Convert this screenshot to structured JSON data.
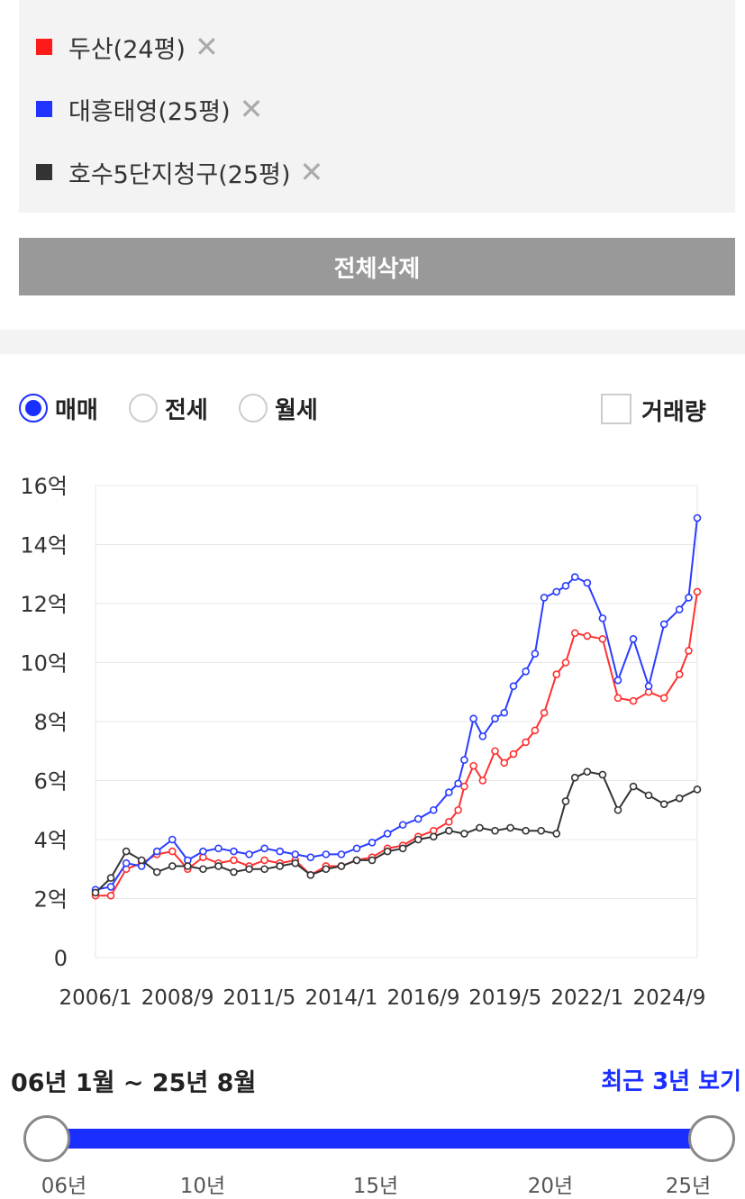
{
  "legend": {
    "items": [
      {
        "label": "두산(24평)",
        "color": "#ff1a1a"
      },
      {
        "label": "대흥태영(25평)",
        "color": "#2233ff"
      },
      {
        "label": "호수5단지청구(25평)",
        "color": "#333333"
      }
    ],
    "remove_glyph": "✕"
  },
  "clear_button": "전체삭제",
  "filters": {
    "options": [
      {
        "label": "매매",
        "selected": true
      },
      {
        "label": "전세",
        "selected": false
      },
      {
        "label": "월세",
        "selected": false
      }
    ],
    "volume_label": "거래량",
    "volume_checked": false
  },
  "chart_data": {
    "type": "line",
    "ylim": [
      0,
      16
    ],
    "yticks": [
      0,
      2,
      4,
      6,
      8,
      10,
      12,
      14,
      16
    ],
    "ytick_labels": [
      "0",
      "2억",
      "4억",
      "6억",
      "8억",
      "10억",
      "12억",
      "14억",
      "16억"
    ],
    "xlim": [
      2006.0,
      2025.58
    ],
    "xtick_values": [
      2006.0,
      2008.67,
      2011.33,
      2014.0,
      2016.67,
      2019.33,
      2022.0,
      2024.67
    ],
    "xtick_labels": [
      "2006/1",
      "2008/9",
      "2011/5",
      "2014/1",
      "2016/9",
      "2019/5",
      "2022/1",
      "2024/9"
    ],
    "grid": true,
    "series": [
      {
        "name": "두산(24평)",
        "color": "#ff3030",
        "x": [
          2006.0,
          2006.5,
          2007.0,
          2007.5,
          2008.0,
          2008.5,
          2009.0,
          2009.5,
          2010.0,
          2010.5,
          2011.0,
          2011.5,
          2012.0,
          2012.5,
          2013.0,
          2013.5,
          2014.0,
          2014.5,
          2015.0,
          2015.5,
          2016.0,
          2016.5,
          2017.0,
          2017.5,
          2017.8,
          2018.0,
          2018.3,
          2018.6,
          2019.0,
          2019.3,
          2019.6,
          2020.0,
          2020.3,
          2020.6,
          2021.0,
          2021.3,
          2021.6,
          2022.0,
          2022.5,
          2023.0,
          2023.5,
          2024.0,
          2024.5,
          2025.0,
          2025.3,
          2025.58
        ],
        "y": [
          2.1,
          2.1,
          3.0,
          3.2,
          3.5,
          3.6,
          3.0,
          3.4,
          3.2,
          3.3,
          3.1,
          3.3,
          3.2,
          3.3,
          2.8,
          3.1,
          3.1,
          3.3,
          3.4,
          3.7,
          3.8,
          4.1,
          4.3,
          4.6,
          5.0,
          5.8,
          6.5,
          6.0,
          7.0,
          6.6,
          6.9,
          7.3,
          7.7,
          8.3,
          9.6,
          10.0,
          11.0,
          10.9,
          10.8,
          8.8,
          8.7,
          9.0,
          8.8,
          9.6,
          10.4,
          12.4
        ]
      },
      {
        "name": "대흥태영(25평)",
        "color": "#2a3cff",
        "x": [
          2006.0,
          2006.5,
          2007.0,
          2007.5,
          2008.0,
          2008.5,
          2009.0,
          2009.5,
          2010.0,
          2010.5,
          2011.0,
          2011.5,
          2012.0,
          2012.5,
          2013.0,
          2013.5,
          2014.0,
          2014.5,
          2015.0,
          2015.5,
          2016.0,
          2016.5,
          2017.0,
          2017.5,
          2017.8,
          2018.0,
          2018.3,
          2018.6,
          2019.0,
          2019.3,
          2019.6,
          2020.0,
          2020.3,
          2020.6,
          2021.0,
          2021.3,
          2021.6,
          2022.0,
          2022.5,
          2023.0,
          2023.5,
          2024.0,
          2024.5,
          2025.0,
          2025.3,
          2025.58
        ],
        "y": [
          2.3,
          2.4,
          3.2,
          3.1,
          3.6,
          4.0,
          3.3,
          3.6,
          3.7,
          3.6,
          3.5,
          3.7,
          3.6,
          3.5,
          3.4,
          3.5,
          3.5,
          3.7,
          3.9,
          4.2,
          4.5,
          4.7,
          5.0,
          5.6,
          5.9,
          6.7,
          8.1,
          7.5,
          8.1,
          8.3,
          9.2,
          9.7,
          10.3,
          12.2,
          12.4,
          12.6,
          12.9,
          12.7,
          11.5,
          9.4,
          10.8,
          9.2,
          11.3,
          11.8,
          12.2,
          14.9
        ]
      },
      {
        "name": "호수5단지청구(25평)",
        "color": "#333333",
        "x": [
          2006.0,
          2006.5,
          2007.0,
          2007.5,
          2008.0,
          2008.5,
          2009.0,
          2009.5,
          2010.0,
          2010.5,
          2011.0,
          2011.5,
          2012.0,
          2012.5,
          2013.0,
          2013.5,
          2014.0,
          2014.5,
          2015.0,
          2015.5,
          2016.0,
          2016.5,
          2017.0,
          2017.5,
          2018.0,
          2018.5,
          2019.0,
          2019.5,
          2020.0,
          2020.5,
          2021.0,
          2021.3,
          2021.6,
          2022.0,
          2022.5,
          2023.0,
          2023.5,
          2024.0,
          2024.5,
          2025.0,
          2025.58
        ],
        "y": [
          2.2,
          2.7,
          3.6,
          3.3,
          2.9,
          3.1,
          3.1,
          3.0,
          3.1,
          2.9,
          3.0,
          3.0,
          3.1,
          3.2,
          2.8,
          3.0,
          3.1,
          3.3,
          3.3,
          3.6,
          3.7,
          4.0,
          4.1,
          4.3,
          4.2,
          4.4,
          4.3,
          4.4,
          4.3,
          4.3,
          4.2,
          5.3,
          6.1,
          6.3,
          6.2,
          5.0,
          5.8,
          5.5,
          5.2,
          5.4,
          5.7
        ]
      }
    ]
  },
  "range": {
    "text": "06년 1월 ~ 25년 8월",
    "recent_link": "최근 3년 보기",
    "start": 0,
    "end": 1,
    "ticks": [
      "06년",
      "10년",
      "15년",
      "20년",
      "25년"
    ]
  }
}
